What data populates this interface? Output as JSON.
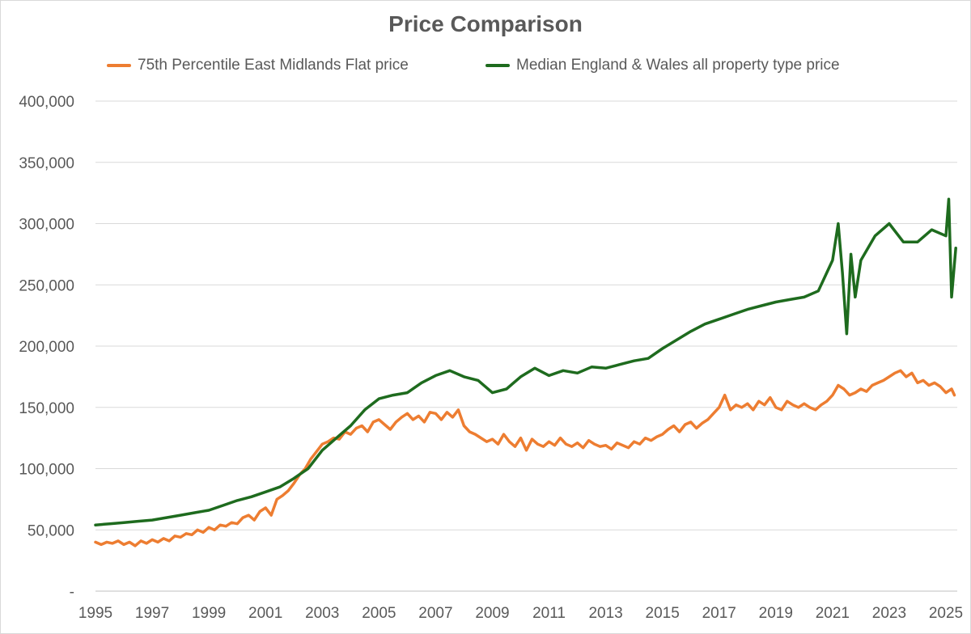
{
  "chart_data": {
    "type": "line",
    "title": "Price Comparison",
    "xlabel": "",
    "ylabel": "",
    "xlim": [
      1995,
      2025.4
    ],
    "ylim": [
      0,
      400000
    ],
    "grid": true,
    "legend_position": "top",
    "y_ticks": [
      0,
      50000,
      100000,
      150000,
      200000,
      250000,
      300000,
      350000,
      400000
    ],
    "y_tick_labels": [
      "-",
      "50,000",
      "100,000",
      "150,000",
      "200,000",
      "250,000",
      "300,000",
      "350,000",
      "400,000"
    ],
    "x_ticks": [
      1995,
      1997,
      1999,
      2001,
      2003,
      2005,
      2007,
      2009,
      2011,
      2013,
      2015,
      2017,
      2019,
      2021,
      2023,
      2025
    ],
    "x_tick_labels": [
      "1995",
      "1997",
      "1999",
      "2001",
      "2003",
      "2005",
      "2007",
      "2009",
      "2011",
      "2013",
      "2015",
      "2017",
      "2019",
      "2021",
      "2023",
      "2025"
    ],
    "series": [
      {
        "name": "75th Percentile East Midlands Flat price",
        "color": "#ed7d31",
        "x": [
          1995.0,
          1995.2,
          1995.4,
          1995.6,
          1995.8,
          1996.0,
          1996.2,
          1996.4,
          1996.6,
          1996.8,
          1997.0,
          1997.2,
          1997.4,
          1997.6,
          1997.8,
          1998.0,
          1998.2,
          1998.4,
          1998.6,
          1998.8,
          1999.0,
          1999.2,
          1999.4,
          1999.6,
          1999.8,
          2000.0,
          2000.2,
          2000.4,
          2000.6,
          2000.8,
          2001.0,
          2001.2,
          2001.4,
          2001.6,
          2001.8,
          2002.0,
          2002.2,
          2002.4,
          2002.6,
          2002.8,
          2003.0,
          2003.2,
          2003.4,
          2003.6,
          2003.8,
          2004.0,
          2004.2,
          2004.4,
          2004.6,
          2004.8,
          2005.0,
          2005.2,
          2005.4,
          2005.6,
          2005.8,
          2006.0,
          2006.2,
          2006.4,
          2006.6,
          2006.8,
          2007.0,
          2007.2,
          2007.4,
          2007.6,
          2007.8,
          2008.0,
          2008.2,
          2008.4,
          2008.6,
          2008.8,
          2009.0,
          2009.2,
          2009.4,
          2009.6,
          2009.8,
          2010.0,
          2010.2,
          2010.4,
          2010.6,
          2010.8,
          2011.0,
          2011.2,
          2011.4,
          2011.6,
          2011.8,
          2012.0,
          2012.2,
          2012.4,
          2012.6,
          2012.8,
          2013.0,
          2013.2,
          2013.4,
          2013.6,
          2013.8,
          2014.0,
          2014.2,
          2014.4,
          2014.6,
          2014.8,
          2015.0,
          2015.2,
          2015.4,
          2015.6,
          2015.8,
          2016.0,
          2016.2,
          2016.4,
          2016.6,
          2016.8,
          2017.0,
          2017.2,
          2017.4,
          2017.6,
          2017.8,
          2018.0,
          2018.2,
          2018.4,
          2018.6,
          2018.8,
          2019.0,
          2019.2,
          2019.4,
          2019.6,
          2019.8,
          2020.0,
          2020.2,
          2020.4,
          2020.6,
          2020.8,
          2021.0,
          2021.2,
          2021.4,
          2021.6,
          2021.8,
          2022.0,
          2022.2,
          2022.4,
          2022.6,
          2022.8,
          2023.0,
          2023.2,
          2023.4,
          2023.6,
          2023.8,
          2024.0,
          2024.2,
          2024.4,
          2024.6,
          2024.8,
          2025.0,
          2025.2,
          2025.3
        ],
        "values": [
          40000,
          38000,
          40000,
          39000,
          41000,
          38000,
          40000,
          37000,
          41000,
          39000,
          42000,
          40000,
          43000,
          41000,
          45000,
          44000,
          47000,
          46000,
          50000,
          48000,
          52000,
          50000,
          54000,
          53000,
          56000,
          55000,
          60000,
          62000,
          58000,
          65000,
          68000,
          62000,
          75000,
          78000,
          82000,
          88000,
          95000,
          100000,
          108000,
          114000,
          120000,
          122000,
          125000,
          124000,
          130000,
          128000,
          133000,
          135000,
          130000,
          138000,
          140000,
          136000,
          132000,
          138000,
          142000,
          145000,
          140000,
          143000,
          138000,
          146000,
          145000,
          140000,
          146000,
          142000,
          148000,
          135000,
          130000,
          128000,
          125000,
          122000,
          124000,
          120000,
          128000,
          122000,
          118000,
          125000,
          115000,
          124000,
          120000,
          118000,
          122000,
          119000,
          125000,
          120000,
          118000,
          121000,
          117000,
          123000,
          120000,
          118000,
          119000,
          116000,
          121000,
          119000,
          117000,
          122000,
          120000,
          125000,
          123000,
          126000,
          128000,
          132000,
          135000,
          130000,
          136000,
          138000,
          133000,
          137000,
          140000,
          145000,
          150000,
          160000,
          148000,
          152000,
          150000,
          153000,
          148000,
          155000,
          152000,
          158000,
          150000,
          148000,
          155000,
          152000,
          150000,
          153000,
          150000,
          148000,
          152000,
          155000,
          160000,
          168000,
          165000,
          160000,
          162000,
          165000,
          163000,
          168000,
          170000,
          172000,
          175000,
          178000,
          180000,
          175000,
          178000,
          170000,
          172000,
          168000,
          170000,
          167000,
          162000,
          165000,
          160000
        ]
      },
      {
        "name": "Median England & Wales all property type price",
        "color": "#1e6b1e",
        "x": [
          1995.0,
          1995.5,
          1996.0,
          1996.5,
          1997.0,
          1997.5,
          1998.0,
          1998.5,
          1999.0,
          1999.5,
          2000.0,
          2000.5,
          2001.0,
          2001.5,
          2002.0,
          2002.5,
          2003.0,
          2003.5,
          2004.0,
          2004.5,
          2005.0,
          2005.5,
          2006.0,
          2006.5,
          2007.0,
          2007.5,
          2008.0,
          2008.5,
          2009.0,
          2009.5,
          2010.0,
          2010.5,
          2011.0,
          2011.5,
          2012.0,
          2012.5,
          2013.0,
          2013.5,
          2014.0,
          2014.5,
          2015.0,
          2015.5,
          2016.0,
          2016.5,
          2017.0,
          2017.5,
          2018.0,
          2018.5,
          2019.0,
          2019.5,
          2020.0,
          2020.5,
          2021.0,
          2021.2,
          2021.35,
          2021.5,
          2021.65,
          2021.8,
          2022.0,
          2022.5,
          2023.0,
          2023.5,
          2024.0,
          2024.5,
          2025.0,
          2025.1,
          2025.2,
          2025.35
        ],
        "values": [
          54000,
          55000,
          56000,
          57000,
          58000,
          60000,
          62000,
          64000,
          66000,
          70000,
          74000,
          77000,
          81000,
          85000,
          92000,
          100000,
          115000,
          125000,
          135000,
          148000,
          157000,
          160000,
          162000,
          170000,
          176000,
          180000,
          175000,
          172000,
          162000,
          165000,
          175000,
          182000,
          176000,
          180000,
          178000,
          183000,
          182000,
          185000,
          188000,
          190000,
          198000,
          205000,
          212000,
          218000,
          222000,
          226000,
          230000,
          233000,
          236000,
          238000,
          240000,
          245000,
          270000,
          300000,
          260000,
          210000,
          275000,
          240000,
          270000,
          290000,
          300000,
          285000,
          285000,
          295000,
          290000,
          320000,
          240000,
          280000
        ]
      }
    ]
  }
}
